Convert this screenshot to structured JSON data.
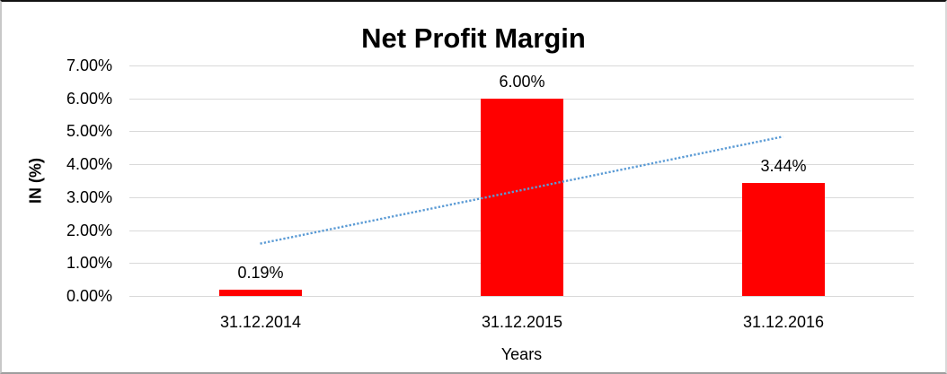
{
  "chart_data": {
    "type": "bar",
    "title": "Net Profit Margin",
    "xlabel": "Years",
    "ylabel": "IN (%)",
    "categories": [
      "31.12.2014",
      "31.12.2015",
      "31.12.2016"
    ],
    "values": [
      0.19,
      6.0,
      3.44
    ],
    "value_labels": [
      "0.19%",
      "6.00%",
      "3.44%"
    ],
    "ylim": [
      0,
      7
    ],
    "ytick_labels_top_to_bottom": [
      "7.00%",
      "6.00%",
      "5.00%",
      "4.00%",
      "3.00%",
      "2.00%",
      "1.00%",
      "0.00%"
    ],
    "grid": "horizontal",
    "legend": "none",
    "bar_color": "#ff0000",
    "gridline_color": "#d9d9d9",
    "text_color": "#000000",
    "trendline": {
      "type": "linear",
      "style": "dotted",
      "color": "#5b9bd5",
      "start_value": 1.59,
      "end_value": 4.84
    }
  }
}
